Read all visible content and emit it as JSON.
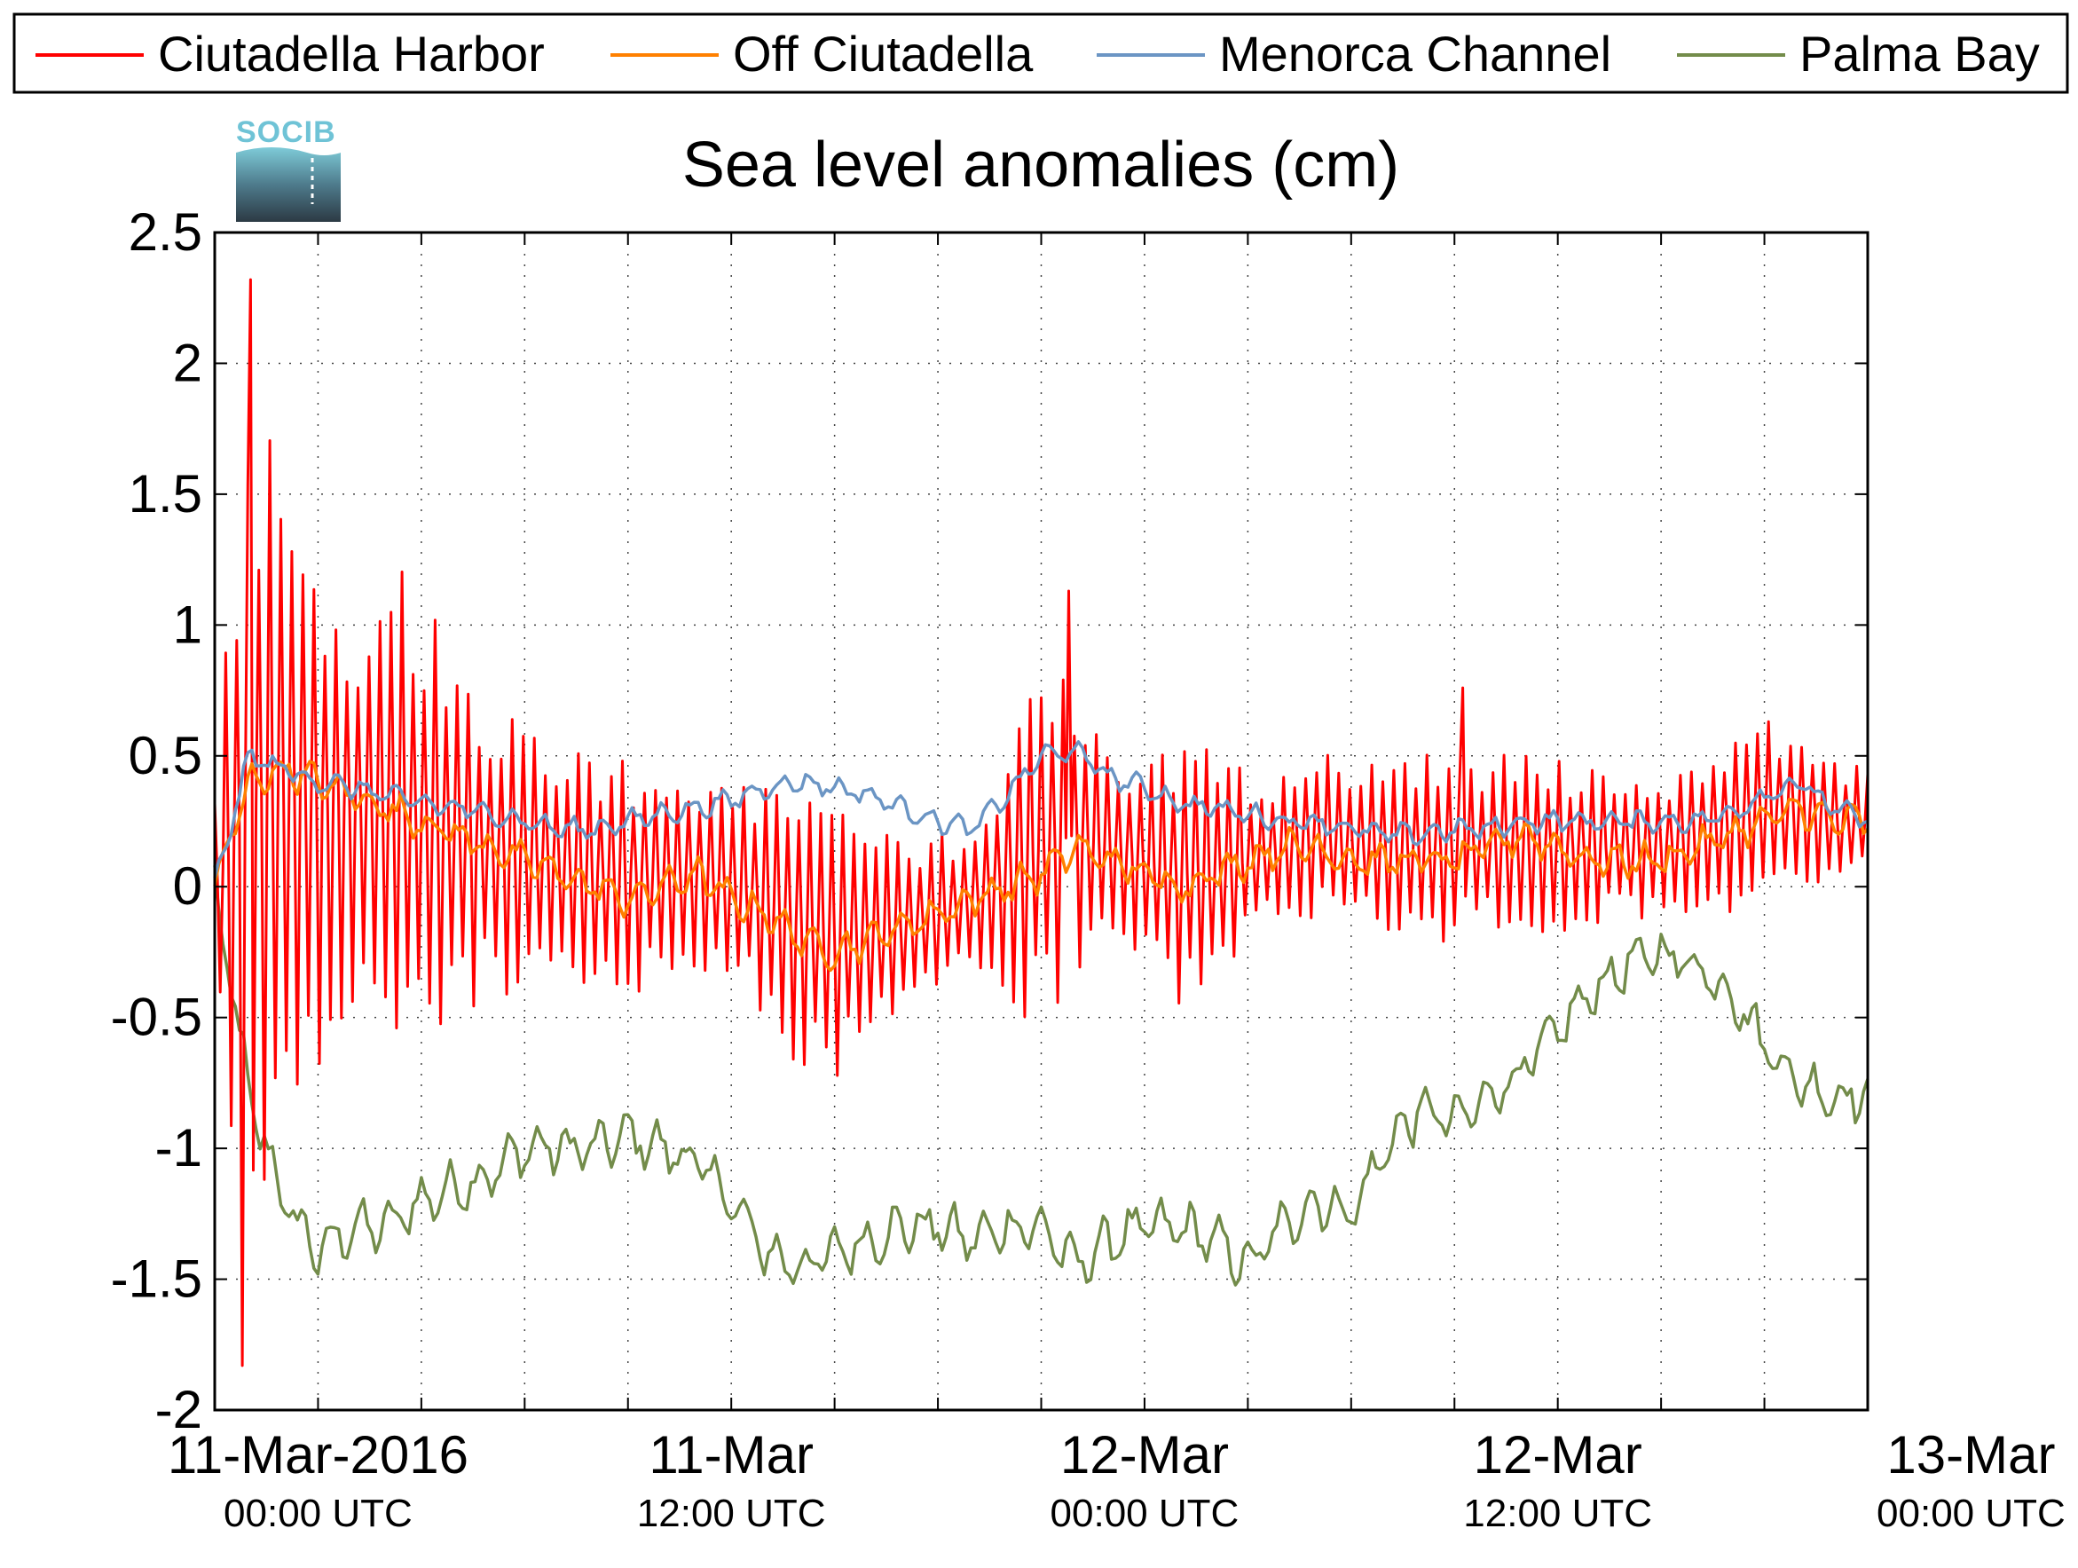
{
  "chart_data": {
    "type": "line",
    "title": "Sea level anomalies (cm)",
    "xlabel": "",
    "ylabel": "",
    "ylim": [
      -2,
      2.5
    ],
    "yticks": [
      "2.5",
      "2",
      "1.5",
      "1",
      "0.5",
      "0",
      "-0.5",
      "-1",
      "-1.5",
      "-2"
    ],
    "xlim_hours": [
      -1,
      47
    ],
    "xticks": [
      {
        "main": "11-Mar-2016",
        "sub": "00:00 UTC"
      },
      {
        "main": "11-Mar",
        "sub": "12:00 UTC"
      },
      {
        "main": "12-Mar",
        "sub": "00:00 UTC"
      },
      {
        "main": "12-Mar",
        "sub": "12:00 UTC"
      },
      {
        "main": "13-Mar",
        "sub": "00:00 UTC"
      }
    ],
    "grid": true,
    "legend_position": "top-outside",
    "series": [
      {
        "name": "Ciutadella Harbor",
        "color": "#ff0000",
        "x_hours": [
          -1,
          0,
          1,
          2,
          3,
          4,
          5,
          6,
          7,
          8,
          9,
          10,
          11,
          12,
          13,
          14,
          15,
          16,
          17,
          18,
          19,
          20,
          21,
          22,
          23,
          24,
          25,
          26,
          27,
          28,
          29,
          30,
          31,
          32,
          33,
          34,
          35,
          36,
          37,
          38,
          39,
          40,
          41,
          42,
          43,
          44,
          45,
          46,
          47
        ],
        "envelope_center": [
          0.0,
          0.3,
          0.35,
          0.3,
          0.3,
          0.3,
          0.25,
          0.2,
          0.15,
          0.12,
          0.1,
          0.05,
          0.05,
          0.05,
          0.05,
          0.0,
          -0.05,
          -0.15,
          -0.2,
          -0.2,
          -0.15,
          -0.1,
          -0.05,
          0.05,
          0.15,
          0.2,
          0.15,
          0.1,
          0.05,
          0.05,
          0.1,
          0.15,
          0.2,
          0.15,
          0.15,
          0.15,
          0.15,
          0.15,
          0.15,
          0.15,
          0.15,
          0.15,
          0.15,
          0.2,
          0.25,
          0.3,
          0.3,
          0.25,
          0.25
        ],
        "envelope_amplitude": [
          0.5,
          1.7,
          1.3,
          1.0,
          0.8,
          1.0,
          0.9,
          0.8,
          0.6,
          0.5,
          0.5,
          0.45,
          0.45,
          0.45,
          0.4,
          0.35,
          0.5,
          0.55,
          0.55,
          0.45,
          0.35,
          0.3,
          0.3,
          0.5,
          0.75,
          0.6,
          0.4,
          0.35,
          0.55,
          0.5,
          0.35,
          0.3,
          0.35,
          0.3,
          0.35,
          0.4,
          0.35,
          0.3,
          0.45,
          0.35,
          0.3,
          0.3,
          0.25,
          0.3,
          0.35,
          0.35,
          0.3,
          0.25,
          0.2
        ],
        "peaks": [
          {
            "x_hours": 0.0,
            "y": 2.32
          },
          {
            "x_hours": -0.2,
            "y": -1.83
          },
          {
            "x_hours": 23.8,
            "y": 1.13
          },
          {
            "x_hours": 35.2,
            "y": 0.76
          }
        ]
      },
      {
        "name": "Off Ciutadella",
        "color": "#ff8000",
        "x_hours": [
          -1,
          0,
          1,
          2,
          3,
          4,
          5,
          6,
          7,
          8,
          9,
          10,
          11,
          12,
          13,
          14,
          15,
          16,
          17,
          18,
          19,
          20,
          21,
          22,
          23,
          24,
          25,
          26,
          27,
          28,
          29,
          30,
          31,
          32,
          33,
          34,
          35,
          36,
          37,
          38,
          39,
          40,
          41,
          42,
          43,
          44,
          45,
          46,
          47
        ],
        "values": [
          0.0,
          0.4,
          0.45,
          0.4,
          0.35,
          0.3,
          0.25,
          0.2,
          0.15,
          0.1,
          0.05,
          0.0,
          -0.05,
          0.0,
          0.05,
          -0.05,
          -0.1,
          -0.2,
          -0.25,
          -0.2,
          -0.15,
          -0.1,
          -0.05,
          0.0,
          0.05,
          0.15,
          0.1,
          0.05,
          0.0,
          0.05,
          0.1,
          0.15,
          0.15,
          0.1,
          0.1,
          0.1,
          0.1,
          0.15,
          0.2,
          0.15,
          0.1,
          0.1,
          0.1,
          0.15,
          0.2,
          0.25,
          0.3,
          0.25,
          0.25
        ]
      },
      {
        "name": "Menorca Channel",
        "color": "#6b95c4",
        "x_hours": [
          -1,
          0,
          1,
          2,
          3,
          4,
          5,
          6,
          7,
          8,
          9,
          10,
          11,
          12,
          13,
          14,
          15,
          16,
          17,
          18,
          19,
          20,
          21,
          22,
          23,
          24,
          25,
          26,
          27,
          28,
          29,
          30,
          31,
          32,
          33,
          34,
          35,
          36,
          37,
          38,
          39,
          40,
          41,
          42,
          43,
          44,
          45,
          46,
          47
        ],
        "values": [
          0.0,
          0.5,
          0.45,
          0.4,
          0.38,
          0.35,
          0.32,
          0.3,
          0.28,
          0.25,
          0.22,
          0.22,
          0.25,
          0.28,
          0.3,
          0.33,
          0.38,
          0.4,
          0.38,
          0.35,
          0.3,
          0.25,
          0.22,
          0.35,
          0.5,
          0.52,
          0.42,
          0.38,
          0.32,
          0.3,
          0.28,
          0.25,
          0.25,
          0.22,
          0.2,
          0.2,
          0.22,
          0.22,
          0.25,
          0.25,
          0.25,
          0.25,
          0.25,
          0.25,
          0.28,
          0.35,
          0.4,
          0.3,
          0.25
        ]
      },
      {
        "name": "Palma Bay",
        "color": "#738c4a",
        "x_hours": [
          -1,
          0,
          1,
          2,
          3,
          4,
          5,
          6,
          7,
          8,
          9,
          10,
          11,
          12,
          13,
          14,
          15,
          16,
          17,
          18,
          19,
          20,
          21,
          22,
          23,
          24,
          25,
          26,
          27,
          28,
          29,
          30,
          31,
          32,
          33,
          34,
          35,
          36,
          37,
          38,
          39,
          40,
          41,
          42,
          43,
          44,
          45,
          46,
          47
        ],
        "values": [
          0.0,
          -0.8,
          -1.2,
          -1.4,
          -1.3,
          -1.3,
          -1.2,
          -1.15,
          -1.1,
          -1.0,
          -1.0,
          -1.0,
          -0.95,
          -1.0,
          -1.05,
          -1.2,
          -1.4,
          -1.45,
          -1.4,
          -1.35,
          -1.3,
          -1.3,
          -1.35,
          -1.3,
          -1.3,
          -1.45,
          -1.35,
          -1.3,
          -1.3,
          -1.35,
          -1.45,
          -1.3,
          -1.2,
          -1.25,
          -1.0,
          -0.85,
          -0.9,
          -0.8,
          -0.7,
          -0.55,
          -0.4,
          -0.3,
          -0.25,
          -0.3,
          -0.4,
          -0.6,
          -0.75,
          -0.8,
          -0.8
        ]
      }
    ]
  },
  "legend": {
    "items": [
      {
        "label": "Ciutadella Harbor",
        "color": "#ff0000"
      },
      {
        "label": "Off Ciutadella",
        "color": "#ff8000"
      },
      {
        "label": "Menorca Channel",
        "color": "#6b95c4"
      },
      {
        "label": "Palma Bay",
        "color": "#738c4a"
      }
    ]
  },
  "logo": {
    "text": "SOCIB"
  }
}
